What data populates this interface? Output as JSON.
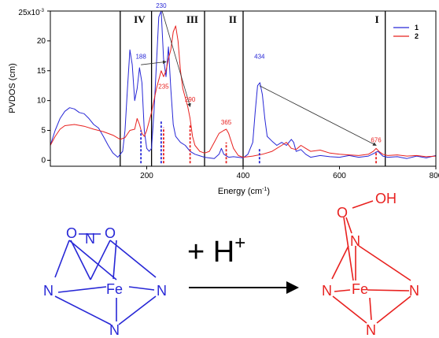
{
  "chart_data": {
    "type": "line",
    "title": "",
    "xlabel": "Energy (cm",
    "xlabel_sup": "-1",
    "xlabel_close": ")",
    "ylabel": "PVDOS (cm)",
    "xlim": [
      0,
      800
    ],
    "ylim": [
      -1,
      25
    ],
    "x_ticks": [
      200,
      400,
      600,
      800
    ],
    "x_tick_labels": [
      "200",
      "400",
      "600",
      "800"
    ],
    "y_ticks": [
      0,
      5,
      10,
      15,
      20,
      25
    ],
    "y_tick_labels": [
      "0",
      "5",
      "10",
      "15",
      "20",
      "25x10"
    ],
    "y_top_sup": "-3",
    "grid": false,
    "legend_position": "top-right",
    "colors": {
      "series1": "#2727d6",
      "series2": "#e8211f"
    },
    "series": [
      {
        "name": "1",
        "color": "#2727d6",
        "points": [
          [
            0,
            2.5
          ],
          [
            10,
            5
          ],
          [
            20,
            7
          ],
          [
            30,
            8.2
          ],
          [
            40,
            8.8
          ],
          [
            50,
            8.6
          ],
          [
            60,
            8
          ],
          [
            70,
            7.8
          ],
          [
            80,
            7
          ],
          [
            90,
            6
          ],
          [
            100,
            5.4
          ],
          [
            110,
            4
          ],
          [
            120,
            2.5
          ],
          [
            130,
            1.2
          ],
          [
            140,
            0.5
          ],
          [
            150,
            1.5
          ],
          [
            155,
            5
          ],
          [
            160,
            12
          ],
          [
            165,
            18.5
          ],
          [
            170,
            16
          ],
          [
            175,
            10
          ],
          [
            180,
            12
          ],
          [
            185,
            15.5
          ],
          [
            190,
            13
          ],
          [
            195,
            5
          ],
          [
            200,
            2
          ],
          [
            205,
            1.5
          ],
          [
            210,
            2
          ],
          [
            215,
            8
          ],
          [
            220,
            16
          ],
          [
            225,
            24
          ],
          [
            230,
            25
          ],
          [
            235,
            17
          ],
          [
            240,
            14
          ],
          [
            245,
            19
          ],
          [
            250,
            12
          ],
          [
            255,
            6
          ],
          [
            260,
            4
          ],
          [
            270,
            3
          ],
          [
            280,
            2.5
          ],
          [
            290,
            1.5
          ],
          [
            300,
            1
          ],
          [
            320,
            0.5
          ],
          [
            340,
            0.3
          ],
          [
            350,
            1
          ],
          [
            355,
            2
          ],
          [
            360,
            1
          ],
          [
            370,
            0.5
          ],
          [
            380,
            0.6
          ],
          [
            390,
            0.5
          ],
          [
            400,
            0.4
          ],
          [
            410,
            1
          ],
          [
            420,
            3
          ],
          [
            425,
            8
          ],
          [
            430,
            12.5
          ],
          [
            435,
            13
          ],
          [
            440,
            11
          ],
          [
            445,
            7
          ],
          [
            450,
            4
          ],
          [
            460,
            3.2
          ],
          [
            470,
            2.5
          ],
          [
            480,
            3
          ],
          [
            490,
            2.5
          ],
          [
            500,
            3.5
          ],
          [
            505,
            3
          ],
          [
            510,
            1.5
          ],
          [
            520,
            1.8
          ],
          [
            530,
            1
          ],
          [
            540,
            0.5
          ],
          [
            560,
            0.8
          ],
          [
            580,
            0.6
          ],
          [
            600,
            0.5
          ],
          [
            620,
            0.8
          ],
          [
            640,
            0.5
          ],
          [
            660,
            0.7
          ],
          [
            680,
            1.5
          ],
          [
            690,
            0.7
          ],
          [
            700,
            0.5
          ],
          [
            720,
            0.6
          ],
          [
            740,
            0.3
          ],
          [
            760,
            0.7
          ],
          [
            780,
            0.4
          ],
          [
            800,
            0.8
          ]
        ]
      },
      {
        "name": "2",
        "color": "#e8211f",
        "points": [
          [
            0,
            2.5
          ],
          [
            10,
            4
          ],
          [
            20,
            5.2
          ],
          [
            30,
            5.8
          ],
          [
            50,
            6
          ],
          [
            70,
            5.7
          ],
          [
            90,
            5.2
          ],
          [
            110,
            4.8
          ],
          [
            130,
            4.2
          ],
          [
            145,
            3.5
          ],
          [
            155,
            3.8
          ],
          [
            165,
            5
          ],
          [
            175,
            5.2
          ],
          [
            180,
            7
          ],
          [
            185,
            6
          ],
          [
            190,
            4.5
          ],
          [
            195,
            4
          ],
          [
            200,
            5
          ],
          [
            210,
            8
          ],
          [
            220,
            12
          ],
          [
            230,
            15
          ],
          [
            235,
            14
          ],
          [
            240,
            15
          ],
          [
            245,
            17
          ],
          [
            250,
            18.5
          ],
          [
            255,
            21.5
          ],
          [
            260,
            22.5
          ],
          [
            265,
            20
          ],
          [
            270,
            15
          ],
          [
            275,
            12
          ],
          [
            280,
            10.5
          ],
          [
            285,
            9
          ],
          [
            290,
            7
          ],
          [
            295,
            4
          ],
          [
            300,
            2.5
          ],
          [
            310,
            1.5
          ],
          [
            320,
            1.2
          ],
          [
            330,
            1.5
          ],
          [
            340,
            3
          ],
          [
            350,
            4.5
          ],
          [
            360,
            5
          ],
          [
            365,
            5.2
          ],
          [
            370,
            4.5
          ],
          [
            380,
            2
          ],
          [
            390,
            0.8
          ],
          [
            400,
            0.5
          ],
          [
            420,
            0.7
          ],
          [
            440,
            1
          ],
          [
            460,
            1.5
          ],
          [
            480,
            2.5
          ],
          [
            490,
            3
          ],
          [
            500,
            2
          ],
          [
            510,
            1.8
          ],
          [
            520,
            2.5
          ],
          [
            530,
            2
          ],
          [
            540,
            1.5
          ],
          [
            560,
            1.7
          ],
          [
            580,
            1.2
          ],
          [
            600,
            1
          ],
          [
            620,
            0.9
          ],
          [
            640,
            0.8
          ],
          [
            660,
            1
          ],
          [
            670,
            1.5
          ],
          [
            676,
            2
          ],
          [
            682,
            1.5
          ],
          [
            690,
            1
          ],
          [
            700,
            0.8
          ],
          [
            720,
            0.9
          ],
          [
            740,
            0.7
          ],
          [
            760,
            0.8
          ],
          [
            780,
            0.6
          ],
          [
            800,
            0.7
          ]
        ]
      }
    ],
    "regions": [
      {
        "label": "IV",
        "from": 145,
        "to": 210
      },
      {
        "label": "III",
        "from": 210,
        "to": 320
      },
      {
        "label": "II",
        "from": 320,
        "to": 400
      },
      {
        "label": "I",
        "from": 400,
        "to": 695
      }
    ],
    "region_boundaries": [
      145,
      210,
      320,
      400,
      695
    ],
    "peak_labels": [
      {
        "text": "188",
        "series": "1",
        "x": 188,
        "y": 17
      },
      {
        "text": "230",
        "series": "1",
        "x": 230,
        "y": 25.5
      },
      {
        "text": "235",
        "series": "2",
        "x": 235,
        "y": 12
      },
      {
        "text": "290",
        "series": "2",
        "x": 290,
        "y": 9.8
      },
      {
        "text": "365",
        "series": "2",
        "x": 365,
        "y": 6
      },
      {
        "text": "434",
        "series": "1",
        "x": 434,
        "y": 17
      },
      {
        "text": "676",
        "series": "2",
        "x": 676,
        "y": 3
      }
    ],
    "markers": [
      {
        "x": 188,
        "series": "1",
        "top": 5
      },
      {
        "x": 230,
        "series": "1",
        "top": 6.5
      },
      {
        "x": 235,
        "series": "2",
        "top": 5.5
      },
      {
        "x": 290,
        "series": "2",
        "top": 6
      },
      {
        "x": 365,
        "series": "2",
        "top": 3
      },
      {
        "x": 434,
        "series": "1",
        "top": 2
      },
      {
        "x": 676,
        "series": "2",
        "top": 1.5
      }
    ],
    "shift_arrows": [
      {
        "from": [
          188,
          16
        ],
        "to": [
          240,
          16.5
        ]
      },
      {
        "from": [
          232,
          25
        ],
        "to": [
          290,
          9
        ]
      },
      {
        "from": [
          434,
          12.5
        ],
        "to": [
          676,
          2.5
        ]
      }
    ]
  },
  "scheme": {
    "reactant_atoms": [
      "O",
      "N",
      "O",
      "N",
      "Fe",
      "N",
      "N"
    ],
    "reagent": "+ H",
    "reagent_sup": "+",
    "product_atoms": [
      "O",
      "OH",
      "N",
      "N",
      "Fe",
      "N",
      "N"
    ]
  }
}
